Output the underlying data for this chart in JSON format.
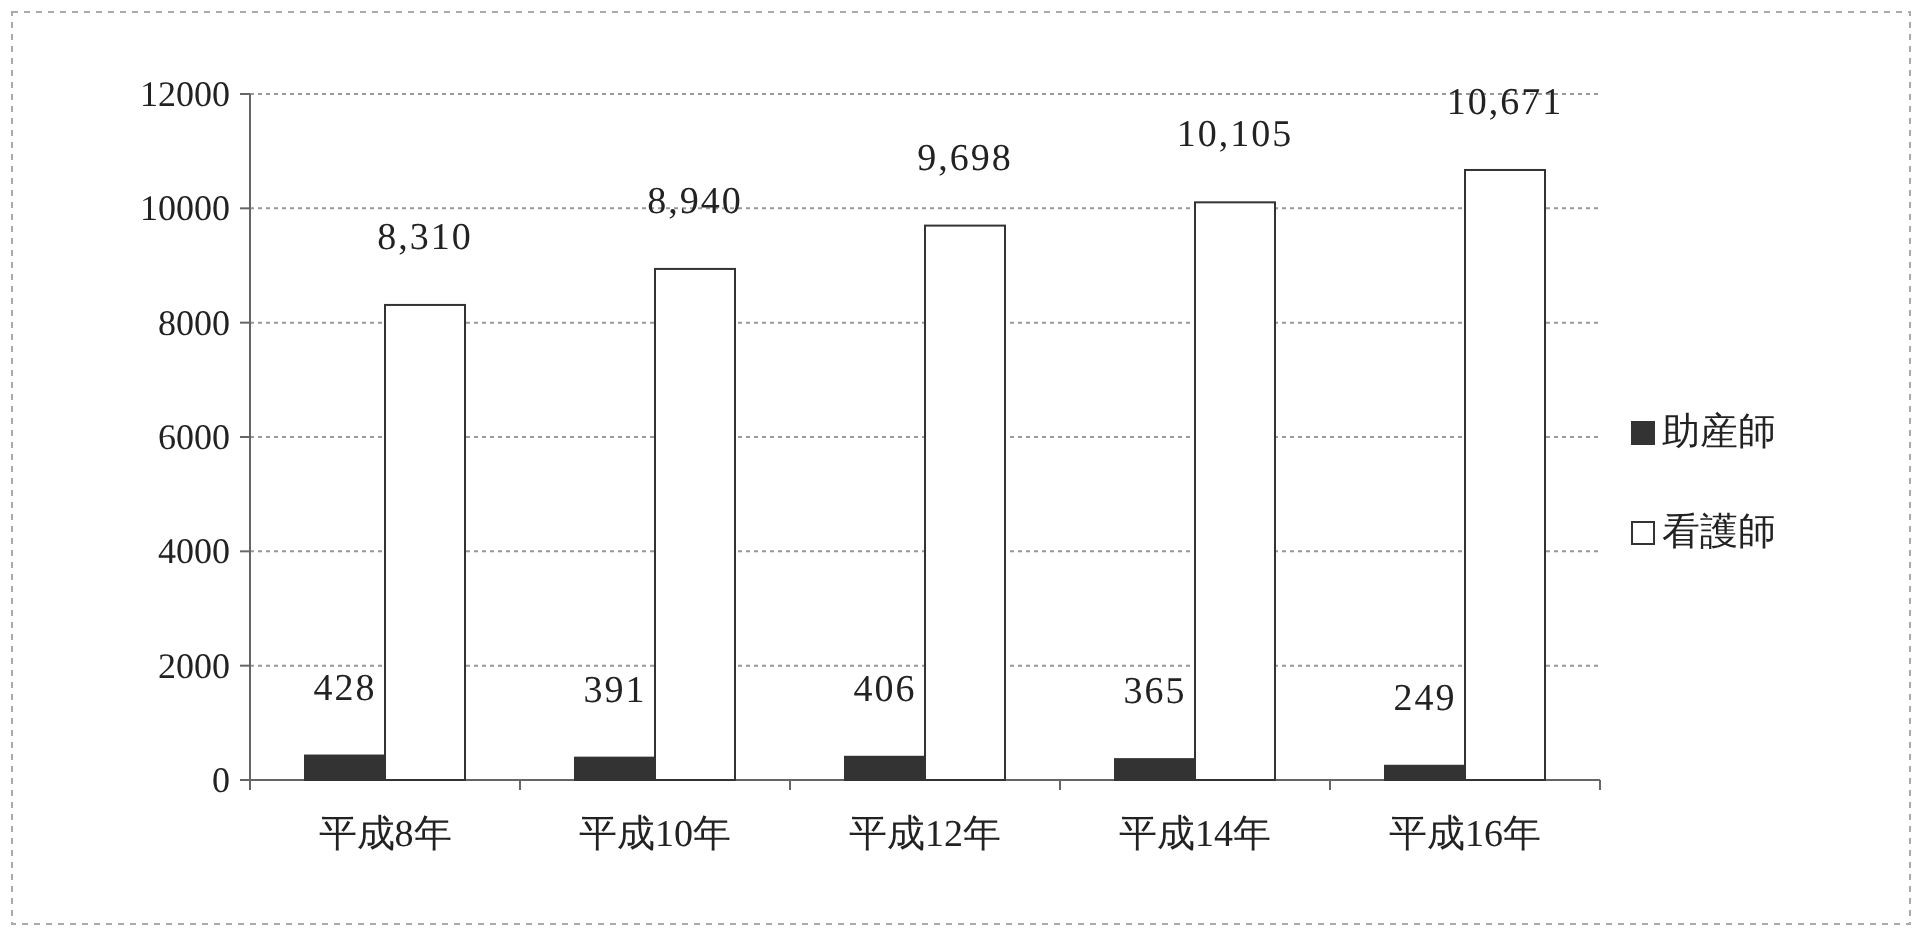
{
  "chart_data": {
    "type": "bar",
    "categories": [
      "平成8年",
      "平成10年",
      "平成12年",
      "平成14年",
      "平成16年"
    ],
    "series": [
      {
        "name": "助産師",
        "color": "#333333",
        "values": [
          428,
          391,
          406,
          365,
          249
        ],
        "value_labels": [
          "428",
          "391",
          "406",
          "365",
          "249"
        ]
      },
      {
        "name": "看護師",
        "color": "#ffffff",
        "values": [
          8310,
          8940,
          9698,
          10105,
          10671
        ],
        "value_labels": [
          "8,310",
          "8,940",
          "9,698",
          "10,105",
          "10,671"
        ]
      }
    ],
    "ylim": [
      0,
      12000
    ],
    "yticks": [
      0,
      2000,
      4000,
      6000,
      8000,
      10000,
      12000
    ],
    "grid": "y",
    "legend": "right"
  }
}
